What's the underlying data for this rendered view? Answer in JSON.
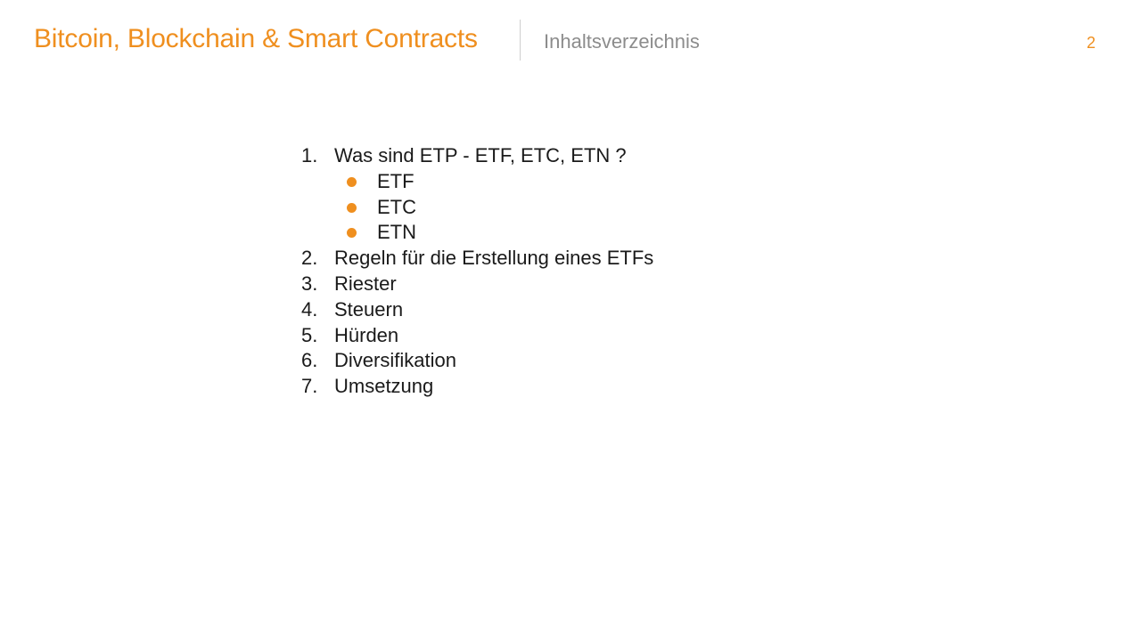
{
  "header": {
    "title": "Bitcoin, Blockchain & Smart Contracts",
    "subtitle": "Inhaltsverzeichnis",
    "page_number": "2"
  },
  "colors": {
    "accent": "#ef8f1f",
    "subtitle": "#8c8c8c",
    "text": "#1a1a1a",
    "divider": "#cfcfcf"
  },
  "toc": {
    "items": [
      {
        "number": "1.",
        "label": "Was sind ETP - ETF, ETC, ETN ?",
        "subitems": [
          {
            "label": "ETF"
          },
          {
            "label": "ETC"
          },
          {
            "label": "ETN"
          }
        ]
      },
      {
        "number": "2.",
        "label": "Regeln für die Erstellung eines ETFs"
      },
      {
        "number": "3.",
        "label": "Riester"
      },
      {
        "number": "4.",
        "label": "Steuern"
      },
      {
        "number": "5.",
        "label": "Hürden"
      },
      {
        "number": "6.",
        "label": "Diversifikation"
      },
      {
        "number": "7.",
        "label": "Umsetzung"
      }
    ]
  }
}
